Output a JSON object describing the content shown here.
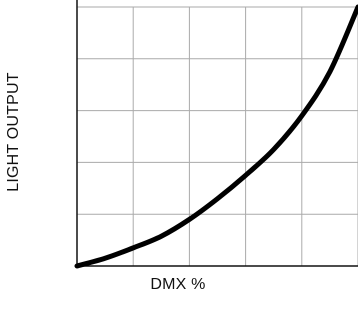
{
  "colors": {
    "background": "#ffffff",
    "grid": "#aaaaaa",
    "axes": "#111111",
    "curve": "#000000"
  },
  "chart_data": {
    "type": "line",
    "title": "",
    "xlabel": "DMX %",
    "ylabel": "LIGHT OUTPUT",
    "xlim": [
      0,
      100
    ],
    "ylim": [
      0,
      100
    ],
    "grid": true,
    "legend": "none",
    "xticks": [
      0,
      20,
      40,
      60,
      80,
      100
    ],
    "yticks": [
      0,
      20,
      40,
      60,
      80,
      100
    ],
    "series": [
      {
        "x": [
          0,
          10,
          20,
          30,
          40,
          50,
          60,
          70,
          80,
          90,
          100
        ],
        "y": [
          0,
          3,
          7,
          11.5,
          18,
          26,
          35,
          45,
          58,
          75,
          100
        ]
      }
    ]
  }
}
